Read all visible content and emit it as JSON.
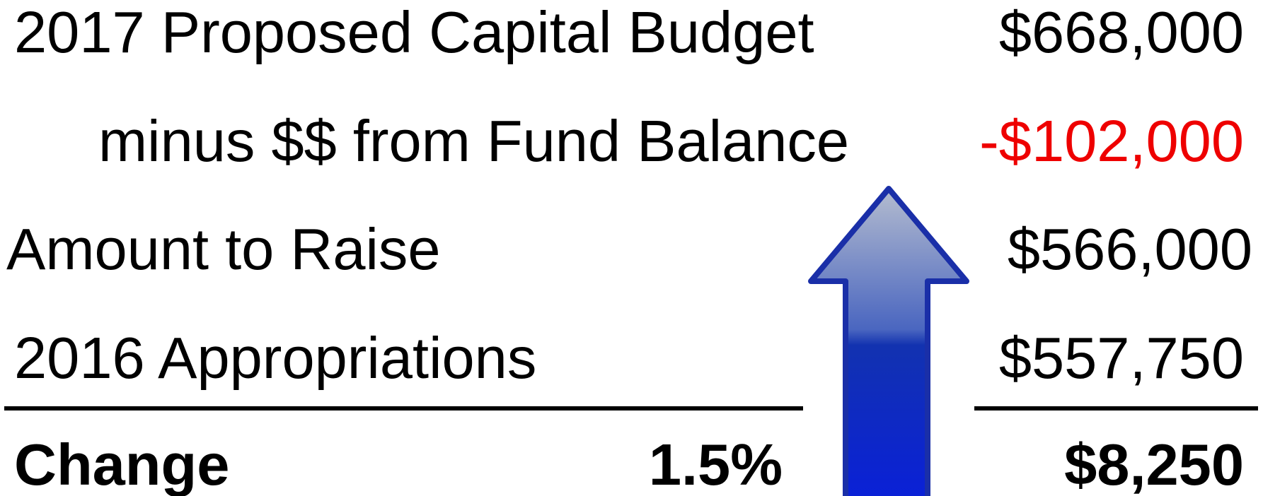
{
  "rows": [
    {
      "label": "2017 Proposed Capital Budget",
      "amount": "$668,000"
    },
    {
      "label": "minus $$ from Fund Balance",
      "amount": "-$102,000"
    },
    {
      "label": "Amount to Raise",
      "amount": "$566,000"
    },
    {
      "label": "2016 Appropriations",
      "amount": "$557,750"
    }
  ],
  "total": {
    "label": "Change",
    "percent": "1.5%",
    "amount": "$8,250"
  }
}
